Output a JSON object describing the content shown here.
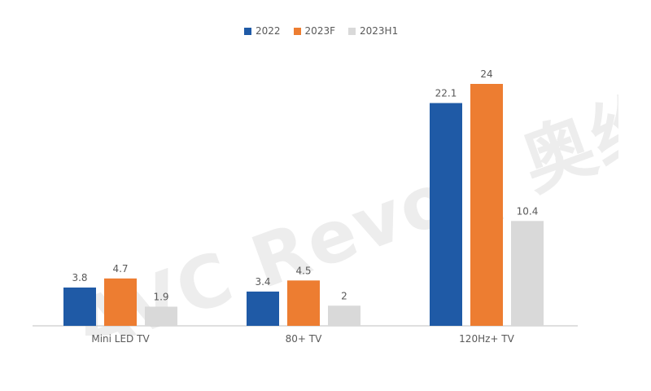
{
  "chart_data": {
    "type": "bar",
    "title": "",
    "xlabel": "",
    "ylabel": "",
    "categories": [
      "Mini LED TV",
      "80+ TV",
      "120Hz+ TV"
    ],
    "category_labels": [
      "Mini LED TV",
      "80+ TV",
      "120Hz+ TV"
    ],
    "series": [
      {
        "name": "2022",
        "color": "#1f5aa6",
        "values": [
          3.8,
          3.4,
          22.1
        ],
        "value_labels": [
          "3.8",
          "3.4",
          "22.1"
        ]
      },
      {
        "name": "2023F",
        "color": "#ed7d31",
        "values": [
          4.7,
          4.5,
          24
        ],
        "value_labels": [
          "4.7",
          "4.5",
          "24"
        ]
      },
      {
        "name": "2023H1",
        "color": "#d9d9d9",
        "values": [
          1.9,
          2,
          10.4
        ],
        "value_labels": [
          "1.9",
          "2",
          "10.4"
        ]
      }
    ],
    "ylim": [
      0,
      24
    ],
    "grid": false,
    "legend_position": "top"
  },
  "watermark": {
    "text": "AVC Revo | 奥维睿沃"
  },
  "colors": {
    "axis": "#bfbfbf",
    "label": "#595959",
    "watermark": "#d9d9d9"
  }
}
